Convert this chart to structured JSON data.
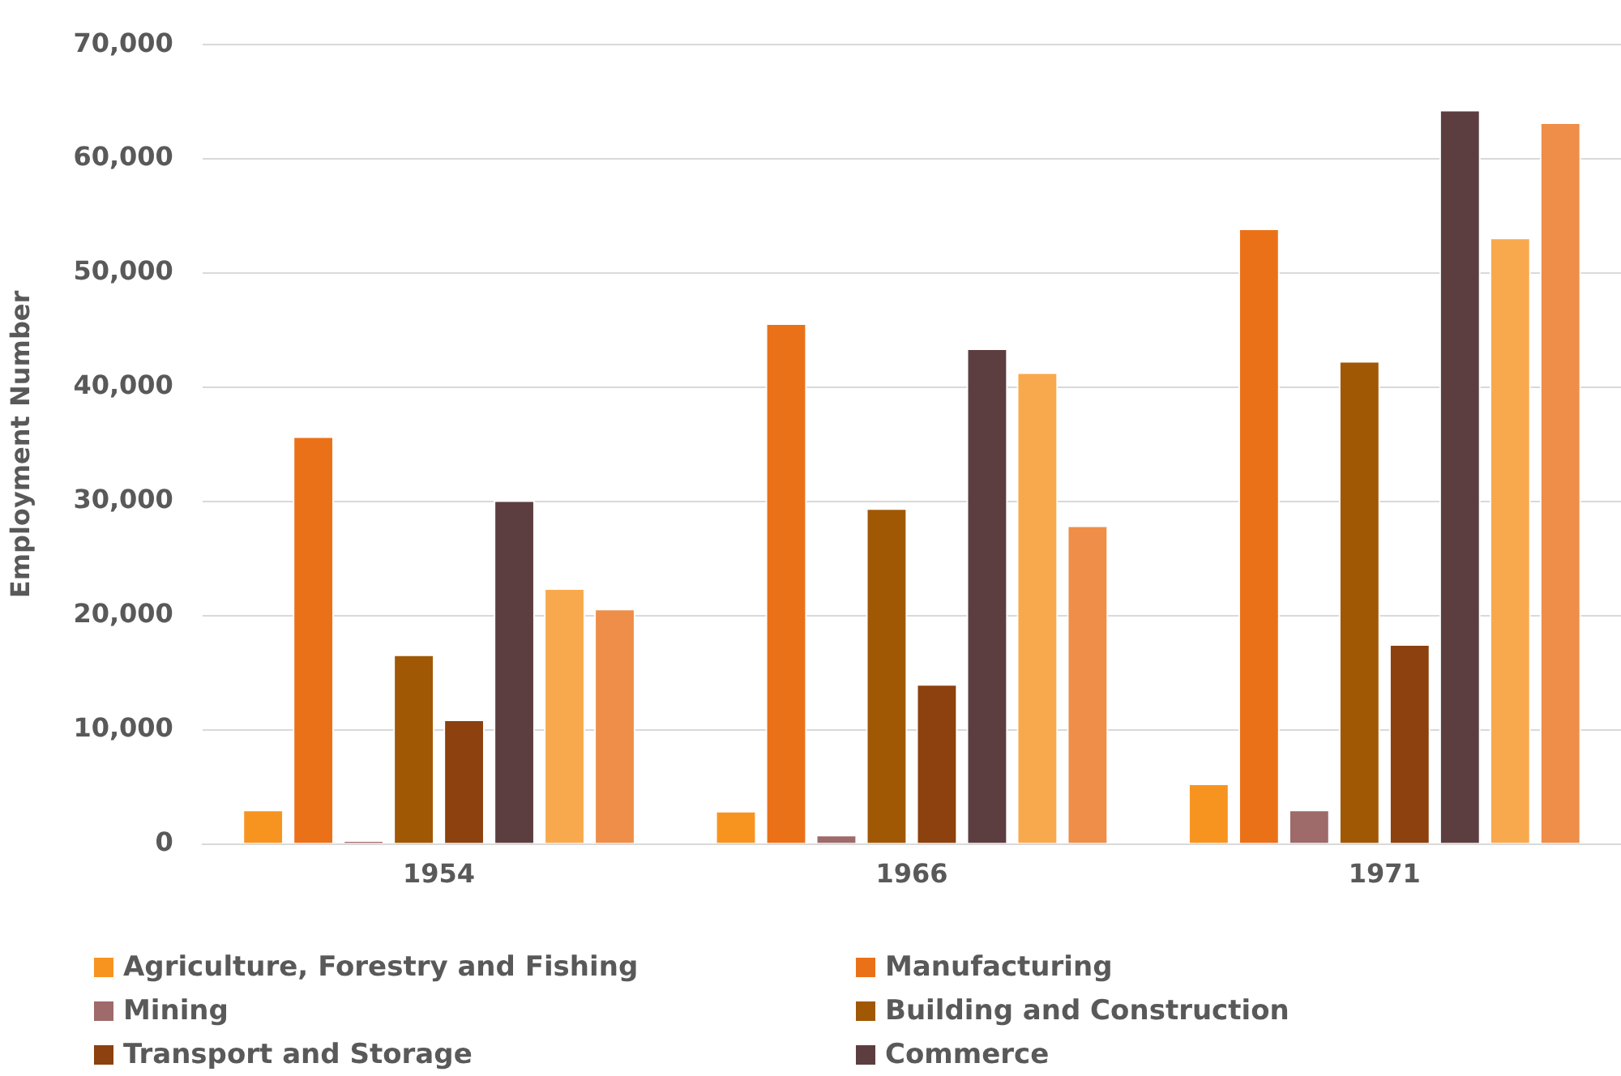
{
  "chart_data": {
    "type": "bar",
    "ylabel": "Employment Number",
    "categories": [
      "1954",
      "1966",
      "1971"
    ],
    "series": [
      {
        "name": "Agriculture, Forestry and Fishing",
        "color": "#f79420",
        "values": [
          3000,
          2900,
          5300
        ]
      },
      {
        "name": "Manufacturing",
        "color": "#eb7118",
        "values": [
          35700,
          45600,
          53900
        ]
      },
      {
        "name": "Mining",
        "color": "#9e6a6a",
        "values": [
          300,
          800,
          3000
        ]
      },
      {
        "name": "Building and Construction",
        "color": "#a05805",
        "values": [
          16600,
          29400,
          42300
        ]
      },
      {
        "name": "Transport and Storage",
        "color": "#8c410e",
        "values": [
          10900,
          14000,
          17500
        ]
      },
      {
        "name": "Commerce",
        "color": "#5d3e40",
        "values": [
          30100,
          43400,
          64300
        ]
      },
      {
        "color": "#f9a94d",
        "values": [
          22400,
          41300,
          53100
        ]
      },
      {
        "color": "#ef8e48",
        "values": [
          20600,
          27900,
          63200
        ]
      }
    ],
    "ylim": [
      0,
      70000
    ],
    "yticks": [
      0,
      {
        "value": 10000,
        "label": "10,000"
      },
      {
        "value": 20000,
        "label": "20,000"
      },
      {
        "value": 30000,
        "label": "30,000"
      },
      {
        "value": 40000,
        "label": "40,000"
      },
      {
        "value": 50000,
        "label": "50,000"
      },
      {
        "value": 60000,
        "label": "60,000"
      },
      {
        "value": 70000,
        "label": "70,000"
      }
    ],
    "grid": "y",
    "legend": "bottom"
  }
}
